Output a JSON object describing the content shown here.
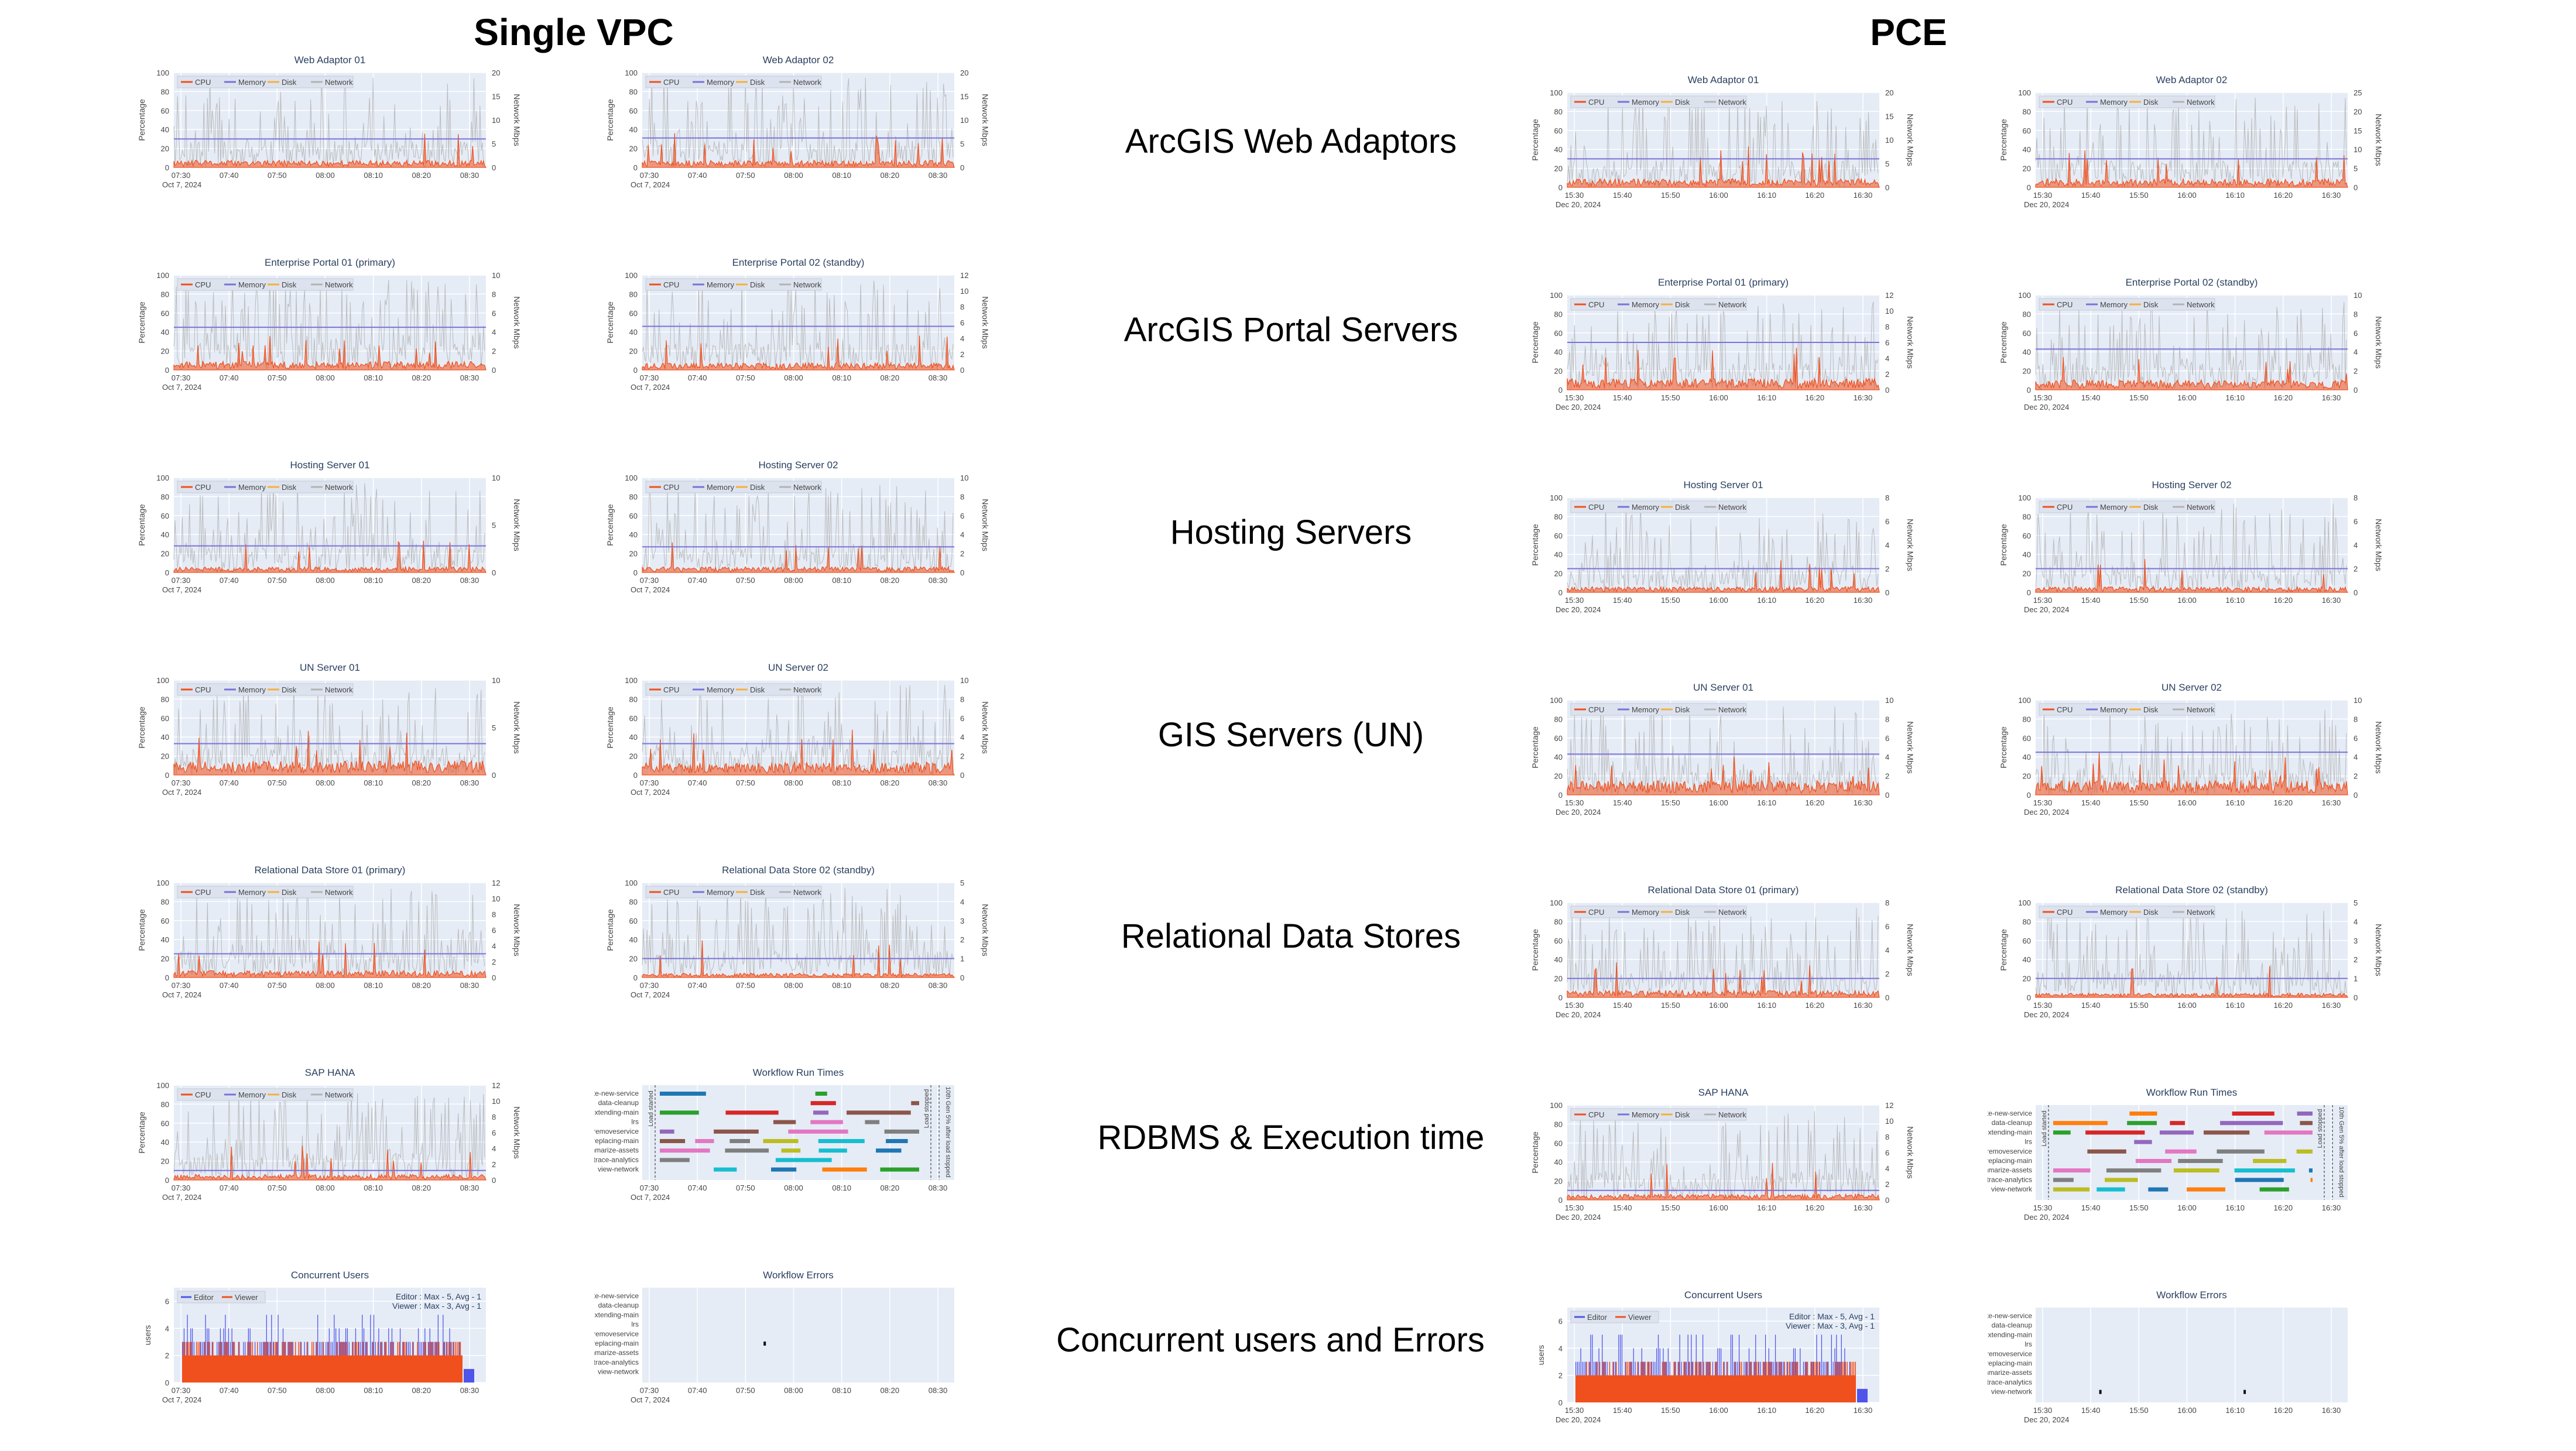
{
  "headings": {
    "left": "Single VPC",
    "right": "PCE"
  },
  "row_labels": [
    "ArcGIS Web Adaptors",
    "ArcGIS Portal Servers",
    "Hosting Servers",
    "GIS Servers (UN)",
    "Relational Data Stores",
    "RDBMS & Execution time",
    "Concurrent users and Errors"
  ],
  "legend": {
    "cpu": "CPU",
    "memory": "Memory",
    "disk": "Disk",
    "network": "Network"
  },
  "axis": {
    "percentage": "Percentage",
    "network_mbps": "Network Mbps",
    "users": "users"
  },
  "colors": {
    "cpu": "#f0501e",
    "memory": "#7b72d9",
    "disk": "#f4b03f",
    "network": "#b3b3b3",
    "plot_bg": "#e5ecf6",
    "editor": "#4f55e8",
    "viewer": "#f0501e"
  },
  "chart_data": {
    "single_vpc": {
      "date_label": "Oct 7, 2024",
      "x_ticks": [
        "07:30",
        "07:40",
        "07:50",
        "08:00",
        "08:10",
        "08:20",
        "08:30"
      ],
      "panels": [
        {
          "type": "line",
          "title": "Web Adaptor 01",
          "y_left": [
            0,
            20,
            40,
            60,
            80,
            100
          ],
          "y_right": [
            0,
            5,
            10,
            15,
            20
          ],
          "memory_percent": 30,
          "cpu_percent_typical": 5,
          "network_peak_mbps": 20
        },
        {
          "type": "line",
          "title": "Web Adaptor 02",
          "y_left": [
            0,
            20,
            40,
            60,
            80,
            100
          ],
          "y_right": [
            0,
            5,
            10,
            15,
            20
          ],
          "memory_percent": 31,
          "cpu_percent_typical": 5,
          "network_peak_mbps": 20
        },
        {
          "type": "line",
          "title": "Enterprise Portal 01 (primary)",
          "y_left": [
            0,
            20,
            40,
            60,
            80,
            100
          ],
          "y_right": [
            0,
            2,
            4,
            6,
            8,
            10
          ],
          "memory_percent": 45,
          "cpu_percent_typical": 6,
          "network_peak_mbps": 10
        },
        {
          "type": "line",
          "title": "Enterprise Portal 02 (standby)",
          "y_left": [
            0,
            20,
            40,
            60,
            80,
            100
          ],
          "y_right": [
            0,
            2,
            4,
            6,
            8,
            10,
            12
          ],
          "memory_percent": 46,
          "cpu_percent_typical": 5,
          "network_peak_mbps": 11
        },
        {
          "type": "line",
          "title": "Hosting Server 01",
          "y_left": [
            0,
            20,
            40,
            60,
            80,
            100
          ],
          "y_right": [
            0,
            5,
            10
          ],
          "memory_percent": 28,
          "cpu_percent_typical": 4,
          "network_peak_mbps": 10
        },
        {
          "type": "line",
          "title": "Hosting Server 02",
          "y_left": [
            0,
            20,
            40,
            60,
            80,
            100
          ],
          "y_right": [
            0,
            2,
            4,
            6,
            8,
            10
          ],
          "memory_percent": 27,
          "cpu_percent_typical": 4,
          "network_peak_mbps": 9
        },
        {
          "type": "line",
          "title": "UN Server 01",
          "y_left": [
            0,
            20,
            40,
            60,
            80,
            100
          ],
          "y_right": [
            0,
            5,
            10
          ],
          "memory_percent": 33,
          "cpu_percent_typical": 10,
          "network_peak_mbps": 9
        },
        {
          "type": "line",
          "title": "UN Server 02",
          "y_left": [
            0,
            20,
            40,
            60,
            80,
            100
          ],
          "y_right": [
            0,
            2,
            4,
            6,
            8,
            10
          ],
          "memory_percent": 33,
          "cpu_percent_typical": 9,
          "network_peak_mbps": 8
        },
        {
          "type": "line",
          "title": "Relational Data Store 01 (primary)",
          "y_left": [
            0,
            20,
            40,
            60,
            80,
            100
          ],
          "y_right": [
            0,
            2,
            4,
            6,
            8,
            10,
            12
          ],
          "memory_percent": 25,
          "cpu_percent_typical": 5,
          "network_peak_mbps": 11
        },
        {
          "type": "line",
          "title": "Relational Data Store 02 (standby)",
          "y_left": [
            0,
            20,
            40,
            60,
            80,
            100
          ],
          "y_right": [
            0,
            1,
            2,
            3,
            4,
            5
          ],
          "memory_percent": 20,
          "cpu_percent_typical": 3,
          "network_peak_mbps": 5
        },
        {
          "type": "line",
          "title": "SAP HANA",
          "y_left": [
            0,
            20,
            40,
            60,
            80,
            100
          ],
          "y_right": [
            0,
            2,
            4,
            6,
            8,
            10,
            12
          ],
          "memory_percent": 10,
          "cpu_percent_typical": 4,
          "network_peak_mbps": 11
        },
        {
          "type": "workflow",
          "title": "Workflow Run Times"
        },
        {
          "type": "users",
          "title": "Concurrent Users",
          "stats": [
            "Editor : Max - 5, Avg - 1",
            "Viewer : Max - 3, Avg - 1"
          ],
          "y_ticks": [
            0,
            2,
            4,
            6
          ],
          "editor_max": 5,
          "viewer_max": 3
        },
        {
          "type": "errors",
          "title": "Workflow Errors",
          "error_points": [
            {
              "x": "07:54",
              "category": "replacing-main"
            }
          ]
        }
      ]
    },
    "pce": {
      "date_label": "Dec 20, 2024",
      "x_ticks": [
        "15:30",
        "15:40",
        "15:50",
        "16:00",
        "16:10",
        "16:20",
        "16:30"
      ],
      "panels": [
        {
          "type": "line",
          "title": "Web Adaptor 01",
          "y_left": [
            0,
            20,
            40,
            60,
            80,
            100
          ],
          "y_right": [
            0,
            5,
            10,
            15,
            20
          ],
          "memory_percent": 30,
          "cpu_percent_typical": 6,
          "network_peak_mbps": 20
        },
        {
          "type": "line",
          "title": "Web Adaptor 02",
          "y_left": [
            0,
            20,
            40,
            60,
            80,
            100
          ],
          "y_right": [
            0,
            5,
            10,
            15,
            20,
            25
          ],
          "memory_percent": 30,
          "cpu_percent_typical": 6,
          "network_peak_mbps": 22
        },
        {
          "type": "line",
          "title": "Enterprise Portal 01 (primary)",
          "y_left": [
            0,
            20,
            40,
            60,
            80,
            100
          ],
          "y_right": [
            0,
            2,
            4,
            6,
            8,
            10,
            12
          ],
          "memory_percent": 50,
          "cpu_percent_typical": 8,
          "network_peak_mbps": 12
        },
        {
          "type": "line",
          "title": "Enterprise Portal 02 (standby)",
          "y_left": [
            0,
            20,
            40,
            60,
            80,
            100
          ],
          "y_right": [
            0,
            2,
            4,
            6,
            8,
            10
          ],
          "memory_percent": 43,
          "cpu_percent_typical": 7,
          "network_peak_mbps": 10
        },
        {
          "type": "line",
          "title": "Hosting Server 01",
          "y_left": [
            0,
            20,
            40,
            60,
            80,
            100
          ],
          "y_right": [
            0,
            2,
            4,
            6,
            8
          ],
          "memory_percent": 25,
          "cpu_percent_typical": 4,
          "network_peak_mbps": 8
        },
        {
          "type": "line",
          "title": "Hosting Server 02",
          "y_left": [
            0,
            20,
            40,
            60,
            80,
            100
          ],
          "y_right": [
            0,
            2,
            4,
            6,
            8
          ],
          "memory_percent": 25,
          "cpu_percent_typical": 4,
          "network_peak_mbps": 8
        },
        {
          "type": "line",
          "title": "UN Server 01",
          "y_left": [
            0,
            20,
            40,
            60,
            80,
            100
          ],
          "y_right": [
            0,
            2,
            4,
            6,
            8,
            10
          ],
          "memory_percent": 43,
          "cpu_percent_typical": 10,
          "network_peak_mbps": 9
        },
        {
          "type": "line",
          "title": "UN Server 02",
          "y_left": [
            0,
            20,
            40,
            60,
            80,
            100
          ],
          "y_right": [
            0,
            2,
            4,
            6,
            8,
            10
          ],
          "memory_percent": 45,
          "cpu_percent_typical": 10,
          "network_peak_mbps": 9
        },
        {
          "type": "line",
          "title": "Relational Data Store 01 (primary)",
          "y_left": [
            0,
            20,
            40,
            60,
            80,
            100
          ],
          "y_right": [
            0,
            2,
            4,
            6,
            8
          ],
          "memory_percent": 20,
          "cpu_percent_typical": 5,
          "network_peak_mbps": 8
        },
        {
          "type": "line",
          "title": "Relational Data Store 02 (standby)",
          "y_left": [
            0,
            20,
            40,
            60,
            80,
            100
          ],
          "y_right": [
            0,
            1,
            2,
            3,
            4,
            5
          ],
          "memory_percent": 20,
          "cpu_percent_typical": 3,
          "network_peak_mbps": 5
        },
        {
          "type": "line",
          "title": "SAP HANA",
          "y_left": [
            0,
            20,
            40,
            60,
            80,
            100
          ],
          "y_right": [
            0,
            2,
            4,
            6,
            8,
            10,
            12
          ],
          "memory_percent": 10,
          "cpu_percent_typical": 4,
          "network_peak_mbps": 11
        },
        {
          "type": "workflow",
          "title": "Workflow Run Times"
        },
        {
          "type": "users",
          "title": "Concurrent Users",
          "stats": [
            "Editor : Max - 5, Avg - 1",
            "Viewer : Max - 3, Avg - 1"
          ],
          "y_ticks": [
            0,
            2,
            4,
            6
          ],
          "editor_max": 5,
          "viewer_max": 3
        },
        {
          "type": "errors",
          "title": "Workflow Errors",
          "error_points": [
            {
              "x": "15:42",
              "category": "view-network"
            },
            {
              "x": "16:12",
              "category": "view-network"
            }
          ]
        }
      ]
    },
    "workflow_categories": [
      "create-new-service",
      "data-cleanup",
      "extending-main",
      "lrs",
      "removeservice",
      "replacing-main",
      "summarize-assets",
      "trace-analytics",
      "view-network"
    ],
    "workflow_annotations": {
      "load_started": "Load started",
      "load_stopped": "Load stopped",
      "after_load_stopped": "10th Gen 5% after load stopped"
    },
    "workflow_colors": [
      "#1f77b4",
      "#ff7f0e",
      "#2ca02c",
      "#d62728",
      "#9467bd",
      "#8c564b",
      "#e377c2",
      "#7f7f7f",
      "#bcbd22",
      "#17becf"
    ]
  }
}
